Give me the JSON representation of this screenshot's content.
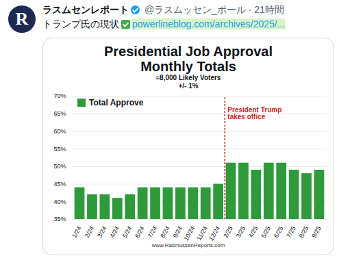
{
  "tweet": {
    "avatar_letter": "R",
    "name": "ラスムセンレポート",
    "handle": "@ラスムッセン_ポール · 21時間",
    "text": "トランプ氏の現状",
    "link": "powerlineblog.com/archives/2025/..."
  },
  "chart_data": {
    "type": "bar",
    "title": [
      "Presidential Job Approval",
      "Monthly Totals"
    ],
    "subtitle": [
      "≈8,000 Likely Voters",
      "+/- 1%"
    ],
    "categories": [
      "1/24",
      "2/24",
      "3/24",
      "4/24",
      "5/24",
      "6/24",
      "7/24",
      "8/24",
      "9/24",
      "10/24",
      "11/24",
      "12/24",
      "2/25",
      "3/25",
      "4/25",
      "5/25",
      "6/25",
      "7/25",
      "8/25",
      "9/25"
    ],
    "series": [
      {
        "name": "Total Approve",
        "color": "#2f9a3b",
        "values": [
          44,
          42,
          42,
          41,
          42,
          44,
          44,
          44,
          44,
          44,
          44,
          45,
          51,
          51,
          49,
          51,
          51,
          49,
          48,
          49
        ]
      }
    ],
    "legend": "top-left",
    "ylim": [
      35,
      70
    ],
    "yticks": [
      {
        "value": 35,
        "label": "35%"
      },
      {
        "value": 40,
        "label": "40%"
      },
      {
        "value": 45,
        "label": "45%"
      },
      {
        "value": 50,
        "label": "50%"
      },
      {
        "value": 55,
        "label": "55%"
      },
      {
        "value": 60,
        "label": "60%"
      },
      {
        "value": 65,
        "label": "65%"
      },
      {
        "value": 70,
        "label": "70%"
      }
    ],
    "grid": true,
    "annotations": [
      {
        "text": "President Trump takes office",
        "between": [
          "12/24",
          "2/25"
        ],
        "color": "#cc1f1f"
      }
    ],
    "caption": "www.RasmussenReports.com"
  }
}
